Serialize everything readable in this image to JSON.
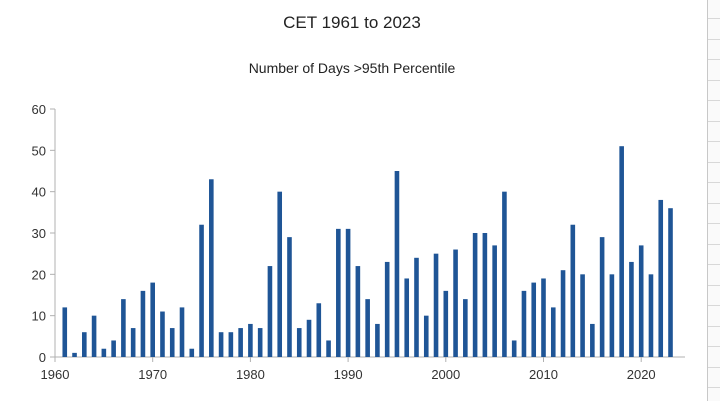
{
  "chart_data": {
    "type": "bar",
    "title": "CET 1961 to 2023",
    "subtitle": "Number of Days >95th Percentile",
    "xlabel": "",
    "ylabel": "",
    "ylim": [
      0,
      60
    ],
    "yticks": [
      "0",
      "10",
      "20",
      "30",
      "40",
      "50",
      "60"
    ],
    "xticks": [
      "1960",
      "1970",
      "1980",
      "1990",
      "2000",
      "2010",
      "2020"
    ],
    "grid": false,
    "bar_color": "#1f5596",
    "years": [
      1961,
      1962,
      1963,
      1964,
      1965,
      1966,
      1967,
      1968,
      1969,
      1970,
      1971,
      1972,
      1973,
      1974,
      1975,
      1976,
      1977,
      1978,
      1979,
      1980,
      1981,
      1982,
      1983,
      1984,
      1985,
      1986,
      1987,
      1988,
      1989,
      1990,
      1991,
      1992,
      1993,
      1994,
      1995,
      1996,
      1997,
      1998,
      1999,
      2000,
      2001,
      2002,
      2003,
      2004,
      2005,
      2006,
      2007,
      2008,
      2009,
      2010,
      2011,
      2012,
      2013,
      2014,
      2015,
      2016,
      2017,
      2018,
      2019,
      2020,
      2021,
      2022,
      2023
    ],
    "values": [
      12,
      1,
      6,
      10,
      2,
      4,
      14,
      7,
      16,
      18,
      11,
      7,
      12,
      2,
      32,
      43,
      6,
      6,
      7,
      8,
      7,
      22,
      40,
      29,
      7,
      9,
      13,
      4,
      31,
      31,
      22,
      14,
      8,
      23,
      45,
      19,
      24,
      10,
      25,
      16,
      26,
      14,
      30,
      30,
      27,
      40,
      4,
      16,
      18,
      19,
      12,
      21,
      32,
      20,
      8,
      29,
      20,
      51,
      23,
      27,
      20,
      38,
      36
    ]
  }
}
